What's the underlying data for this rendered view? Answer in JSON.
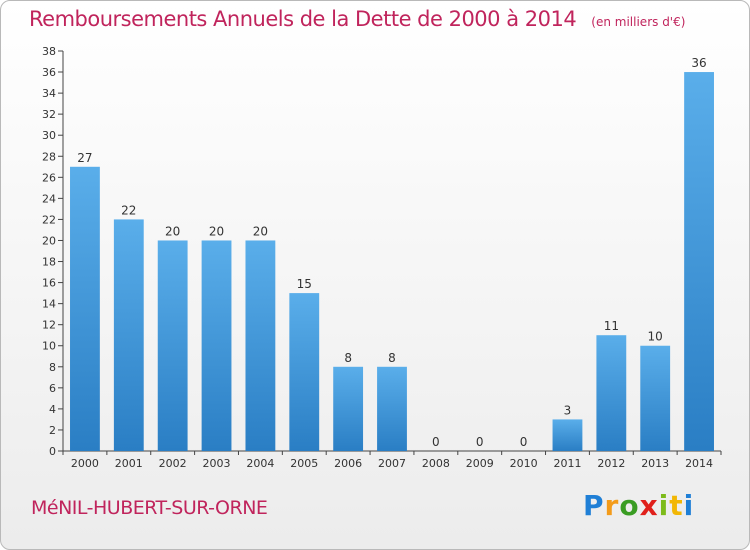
{
  "chart_data": {
    "type": "bar",
    "title": "Remboursements Annuels de la Dette de 2000 à 2014",
    "subtitle": "(en milliers d'€)",
    "categories": [
      "2000",
      "2001",
      "2002",
      "2003",
      "2004",
      "2005",
      "2006",
      "2007",
      "2008",
      "2009",
      "2010",
      "2011",
      "2012",
      "2013",
      "2014"
    ],
    "values": [
      27,
      22,
      20,
      20,
      20,
      15,
      8,
      8,
      0,
      0,
      0,
      3,
      11,
      10,
      36
    ],
    "ylim": [
      0,
      38
    ],
    "yticks": [
      0,
      2,
      4,
      6,
      8,
      10,
      12,
      14,
      16,
      18,
      20,
      22,
      24,
      26,
      28,
      30,
      32,
      34,
      36,
      38
    ],
    "xlabel": "",
    "ylabel": "",
    "grid": false,
    "colors": {
      "bar_top": "#5aaeea",
      "bar_bottom": "#2a7ec4",
      "axis": "#444444"
    }
  },
  "footer": {
    "commune": "MéNIL-HUBERT-SUR-ORNE",
    "logo": [
      "P",
      "r",
      "o",
      "x",
      "i",
      "t",
      "i"
    ]
  },
  "theme": {
    "accent": "#c0245c"
  }
}
